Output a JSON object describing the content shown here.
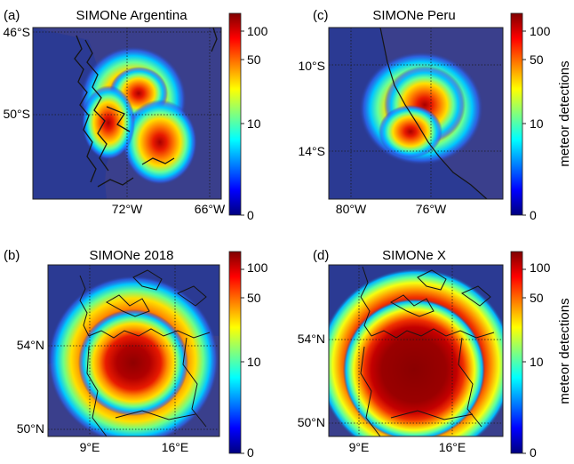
{
  "colors": {
    "ocean": "#2b3a93",
    "land": "#3a3f8c",
    "coast": "#151515",
    "grid": "#1b1b1b",
    "colormap": [
      "#00007f",
      "#0000ff",
      "#007fff",
      "#00ffff",
      "#7fff7f",
      "#ffff00",
      "#ff7f00",
      "#ff0000",
      "#7f0000"
    ]
  },
  "colorbar_label": "meteor detections",
  "colorbar_ticks": [
    "0",
    "10",
    "50",
    "100"
  ],
  "chart_data": [
    {
      "type": "heatmap",
      "panel": "(a)",
      "title": "SIMONe Argentina",
      "ylabels": [
        "46°S",
        "50°S"
      ],
      "xlabels": [
        "72°W",
        "66°W"
      ],
      "center": "approx. 49°S, 70°W",
      "peak_detections": 100
    },
    {
      "type": "heatmap",
      "panel": "(c)",
      "title": "SIMONe Peru",
      "ylabels": [
        "10°S",
        "14°S"
      ],
      "xlabels": [
        "80°W",
        "76°W"
      ],
      "center": "approx. 12°S, 77°W",
      "peak_detections": 100
    },
    {
      "type": "heatmap",
      "panel": "(b)",
      "title": "SIMONe 2018",
      "ylabels": [
        "54°N",
        "50°N"
      ],
      "xlabels": [
        "9°E",
        "16°E"
      ],
      "center": "approx. 53°N, 12°E",
      "peak_detections": 100
    },
    {
      "type": "heatmap",
      "panel": "(d)",
      "title": "SIMONe X",
      "ylabels": [
        "54°N",
        "50°N"
      ],
      "xlabels": [
        "9°E",
        "16°E"
      ],
      "center": "approx. 53°N, 12°E",
      "peak_detections": 100
    }
  ]
}
